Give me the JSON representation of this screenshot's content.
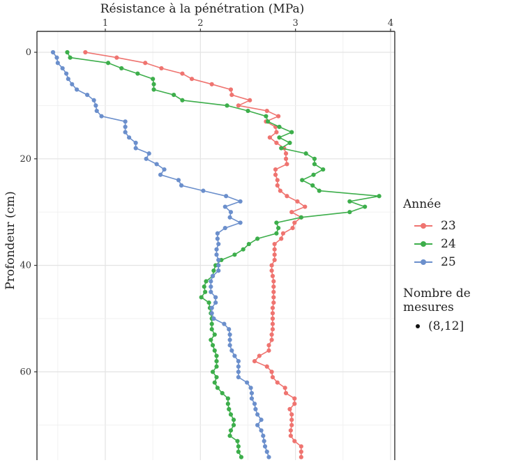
{
  "chart_data": {
    "type": "line",
    "title": "",
    "xlabel": "Résistance à la pénétration (MPa)",
    "ylabel": "Profondeur (cm)",
    "x_axis_position": "top",
    "y_reversed": true,
    "xlim": [
      0.28,
      4.04
    ],
    "ylim": [
      0,
      76.5
    ],
    "x_ticks": [
      1,
      2,
      3,
      4
    ],
    "y_ticks": [
      0,
      20,
      40,
      60
    ],
    "grid": true,
    "legend_position": "right",
    "legend_title": "Année",
    "size_legend_title": "Nombre de mesures",
    "size_legend_label": "(8,12]",
    "depths": [
      0,
      1,
      2,
      3,
      4,
      5,
      6,
      7,
      8,
      9,
      10,
      11,
      12,
      13,
      14,
      15,
      16,
      17,
      18,
      19,
      20,
      21,
      22,
      23,
      24,
      25,
      26,
      27,
      28,
      29,
      30,
      31,
      32,
      33,
      34,
      35,
      36,
      37,
      38,
      39,
      40,
      41,
      42,
      43,
      44,
      45,
      46,
      47,
      48,
      49,
      50,
      51,
      52,
      53,
      54,
      55,
      56,
      57,
      58,
      59,
      60,
      61,
      62,
      63,
      64,
      65,
      66,
      67,
      68,
      69,
      70,
      71,
      72,
      73,
      74,
      75,
      76
    ],
    "series": [
      {
        "name": "23",
        "color": "#EF7470",
        "values": [
          0.79,
          1.12,
          1.42,
          1.59,
          1.81,
          1.91,
          2.12,
          2.32,
          2.33,
          2.52,
          2.4,
          2.7,
          2.82,
          2.69,
          2.79,
          2.8,
          2.73,
          2.8,
          2.88,
          2.9,
          2.9,
          2.91,
          2.79,
          2.79,
          2.81,
          2.81,
          2.84,
          2.91,
          3.02,
          3.1,
          2.96,
          3.06,
          2.99,
          2.97,
          2.87,
          2.85,
          2.78,
          2.78,
          2.78,
          2.78,
          2.75,
          2.75,
          2.76,
          2.77,
          2.77,
          2.77,
          2.77,
          2.77,
          2.76,
          2.76,
          2.76,
          2.76,
          2.76,
          2.75,
          2.75,
          2.72,
          2.72,
          2.62,
          2.57,
          2.7,
          2.75,
          2.76,
          2.81,
          2.89,
          2.9,
          2.99,
          2.99,
          2.94,
          2.96,
          2.96,
          2.96,
          2.95,
          2.95,
          2.99,
          3.06,
          3.06,
          3.06
        ]
      },
      {
        "name": "24",
        "color": "#3DAE4B",
        "values": [
          0.6,
          0.63,
          1.03,
          1.17,
          1.34,
          1.5,
          1.51,
          1.51,
          1.72,
          1.81,
          2.28,
          2.5,
          2.69,
          2.71,
          2.83,
          2.96,
          2.83,
          2.94,
          2.85,
          3.11,
          3.2,
          3.2,
          3.29,
          3.19,
          3.07,
          3.18,
          3.25,
          3.88,
          3.57,
          3.73,
          3.57,
          3.06,
          2.8,
          2.82,
          2.8,
          2.6,
          2.51,
          2.45,
          2.36,
          2.22,
          2.16,
          2.14,
          2.13,
          2.06,
          2.04,
          2.05,
          2.01,
          2.09,
          2.1,
          2.11,
          2.12,
          2.12,
          2.12,
          2.15,
          2.11,
          2.13,
          2.15,
          2.17,
          2.17,
          2.17,
          2.13,
          2.17,
          2.15,
          2.18,
          2.23,
          2.29,
          2.29,
          2.3,
          2.32,
          2.35,
          2.35,
          2.32,
          2.31,
          2.39,
          2.4,
          2.4,
          2.43
        ]
      },
      {
        "name": "25",
        "color": "#6B8FCC",
        "values": [
          0.45,
          0.49,
          0.5,
          0.55,
          0.59,
          0.61,
          0.65,
          0.7,
          0.81,
          0.88,
          0.9,
          0.91,
          0.96,
          1.21,
          1.21,
          1.21,
          1.25,
          1.32,
          1.32,
          1.46,
          1.43,
          1.54,
          1.62,
          1.58,
          1.77,
          1.8,
          2.03,
          2.27,
          2.42,
          2.26,
          2.32,
          2.31,
          2.42,
          2.26,
          2.18,
          2.18,
          2.19,
          2.17,
          2.17,
          2.19,
          2.19,
          2.19,
          2.13,
          2.11,
          2.11,
          2.11,
          2.16,
          2.16,
          2.12,
          2.12,
          2.14,
          2.25,
          2.3,
          2.31,
          2.31,
          2.31,
          2.33,
          2.36,
          2.4,
          2.4,
          2.4,
          2.4,
          2.49,
          2.53,
          2.54,
          2.54,
          2.57,
          2.58,
          2.6,
          2.64,
          2.6,
          2.64,
          2.66,
          2.67,
          2.68,
          2.7,
          2.72
        ]
      }
    ]
  },
  "legend": {
    "title": "Année",
    "items": [
      {
        "label": "23",
        "color": "#EF7470"
      },
      {
        "label": "24",
        "color": "#3DAE4B"
      },
      {
        "label": "25",
        "color": "#6B8FCC"
      }
    ],
    "size_title": "Nombre de mesures",
    "size_label": "(8,12]"
  }
}
